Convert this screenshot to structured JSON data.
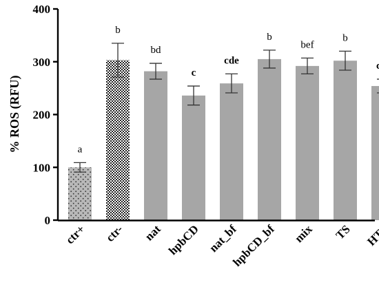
{
  "chart_data": {
    "type": "bar",
    "ylabel": "% ROS (RFU)",
    "xlabel": "",
    "ylim": [
      0,
      400
    ],
    "yticks": [
      0,
      100,
      200,
      300,
      400
    ],
    "grid": false,
    "categories": [
      "ctr+",
      "ctr-",
      "nat",
      "hpbCD",
      "nat_bf",
      "hpbCD_bf",
      "mix",
      "TS",
      "HTS"
    ],
    "values": [
      100,
      303,
      282,
      236,
      259,
      305,
      292,
      302,
      254
    ],
    "errors": [
      9,
      32,
      15,
      18,
      18,
      17,
      15,
      18,
      13
    ],
    "significance_labels": [
      "a",
      "b",
      "bd",
      "c",
      "cde",
      "b",
      "bef",
      "b",
      "cdf"
    ],
    "significance_bold": [
      false,
      false,
      false,
      true,
      true,
      false,
      false,
      false,
      true
    ],
    "bar_styles": [
      "dotted",
      "checkered",
      "solid",
      "solid",
      "solid",
      "solid",
      "solid",
      "solid",
      "solid"
    ],
    "colors": {
      "bar_fill": "#a6a6a6",
      "dotted_bg": "#b8b8b8",
      "dot": "#333333",
      "checker_light": "#ffffff",
      "checker_dark": "#222222",
      "axis": "#000000"
    }
  }
}
